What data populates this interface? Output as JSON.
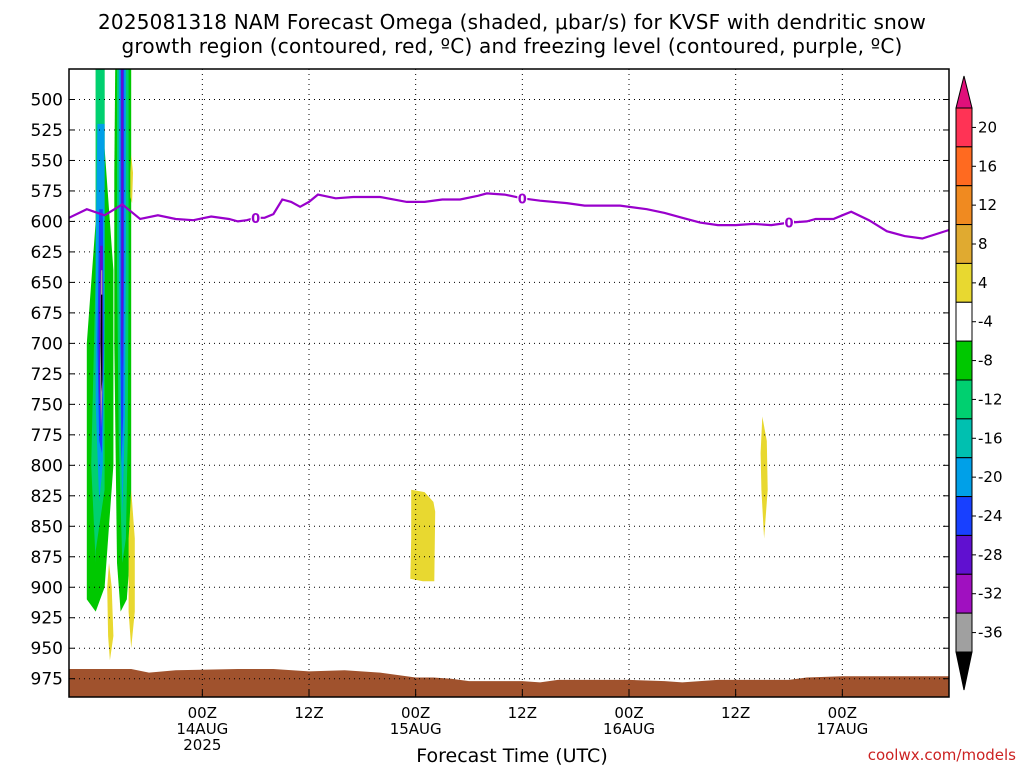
{
  "title": {
    "line1": "2025081318 NAM Forecast Omega (shaded, μbar/s) for KVSF with dendritic snow",
    "line2": "growth region (contoured, red, ºC) and freezing level (contoured, purple, ºC)"
  },
  "credit": "coolwx.com/models",
  "chart_data": {
    "type": "heatmap",
    "xlabel": "Forecast Time (UTC)",
    "ylabel": "",
    "x_range_hours": [
      -15,
      84
    ],
    "y_range_hPa": [
      475,
      990
    ],
    "y_ticks": [
      500,
      525,
      550,
      575,
      600,
      625,
      650,
      675,
      700,
      725,
      750,
      775,
      800,
      825,
      850,
      875,
      900,
      925,
      950,
      975
    ],
    "x_ticks": [
      {
        "hour": 0,
        "lines": [
          "00Z",
          "14AUG",
          "2025"
        ]
      },
      {
        "hour": 12,
        "lines": [
          "12Z"
        ]
      },
      {
        "hour": 24,
        "lines": [
          "00Z",
          "15AUG"
        ]
      },
      {
        "hour": 36,
        "lines": [
          "12Z"
        ]
      },
      {
        "hour": 48,
        "lines": [
          "00Z",
          "16AUG"
        ]
      },
      {
        "hour": 60,
        "lines": [
          "12Z"
        ]
      },
      {
        "hour": 72,
        "lines": [
          "00Z",
          "17AUG"
        ]
      }
    ],
    "grid": true,
    "colorbar": {
      "placement": "right",
      "labels": [
        "20",
        "16",
        "12",
        "8",
        "4",
        "-4",
        "-8",
        "-12",
        "-16",
        "-20",
        "-24",
        "-28",
        "-32",
        "-36"
      ],
      "colors_top_to_bottom": [
        "#ff3355",
        "#ff6a20",
        "#f08a20",
        "#e0aa30",
        "#e8d830",
        "#ffffff",
        "#00c800",
        "#00d070",
        "#00c0b0",
        "#00a0e8",
        "#1840ff",
        "#6010d0",
        "#a010c0",
        "#a0a0a0"
      ],
      "top_arrow_color": "#e0107a",
      "bottom_arrow_color": "#000000"
    },
    "freezing_level": {
      "color": "#9900cc",
      "contour_label": "0",
      "label_hours": [
        6,
        36,
        66
      ],
      "points": [
        [
          -15,
          597
        ],
        [
          -13,
          590
        ],
        [
          -11,
          595
        ],
        [
          -9,
          586
        ],
        [
          -7,
          598
        ],
        [
          -5,
          595
        ],
        [
          -3,
          598
        ],
        [
          -1,
          599
        ],
        [
          1,
          596
        ],
        [
          3,
          598
        ],
        [
          4,
          600
        ],
        [
          5,
          599
        ],
        [
          6,
          597
        ],
        [
          7,
          597
        ],
        [
          8,
          594
        ],
        [
          9,
          582
        ],
        [
          10,
          584
        ],
        [
          11,
          588
        ],
        [
          12,
          584
        ],
        [
          13,
          578
        ],
        [
          15,
          581
        ],
        [
          17,
          580
        ],
        [
          20,
          580
        ],
        [
          23,
          584
        ],
        [
          25,
          584
        ],
        [
          27,
          582
        ],
        [
          29,
          582
        ],
        [
          31,
          579
        ],
        [
          32,
          577
        ],
        [
          34,
          578
        ],
        [
          36,
          581
        ],
        [
          38,
          583
        ],
        [
          41,
          585
        ],
        [
          43,
          587
        ],
        [
          45,
          587
        ],
        [
          47,
          587
        ],
        [
          50,
          590
        ],
        [
          52,
          593
        ],
        [
          54,
          597
        ],
        [
          56,
          601
        ],
        [
          58,
          603
        ],
        [
          60,
          603
        ],
        [
          62,
          602
        ],
        [
          64,
          603
        ],
        [
          66,
          601
        ],
        [
          68,
          600
        ],
        [
          69,
          598
        ],
        [
          71,
          598
        ],
        [
          72,
          595
        ],
        [
          73,
          592
        ],
        [
          75,
          599
        ],
        [
          77,
          608
        ],
        [
          79,
          612
        ],
        [
          81,
          614
        ],
        [
          84,
          607
        ]
      ]
    },
    "omega_shading": [
      {
        "color": "#00c800",
        "outline": [
          [
            -12,
            475
          ],
          [
            -11,
            475
          ],
          [
            -11,
            540
          ],
          [
            -10,
            640
          ],
          [
            -10,
            800
          ],
          [
            -11,
            900
          ],
          [
            -12,
            920
          ],
          [
            -13,
            910
          ],
          [
            -13,
            880
          ],
          [
            -13,
            820
          ],
          [
            -13,
            700
          ],
          [
            -12,
            600
          ]
        ]
      },
      {
        "color": "#00d070",
        "outline": [
          [
            -12,
            475
          ],
          [
            -11,
            475
          ],
          [
            -11,
            560
          ],
          [
            -11,
            700
          ],
          [
            -11,
            820
          ],
          [
            -12,
            870
          ],
          [
            -12,
            880
          ],
          [
            -12.5,
            800
          ],
          [
            -12,
            640
          ],
          [
            -12,
            560
          ]
        ]
      },
      {
        "color": "#00a0e8",
        "outline": [
          [
            -11.8,
            520
          ],
          [
            -11,
            520
          ],
          [
            -11,
            680
          ],
          [
            -11.2,
            800
          ],
          [
            -11.6,
            830
          ],
          [
            -12,
            750
          ],
          [
            -12,
            620
          ]
        ]
      },
      {
        "color": "#1840ff",
        "outline": [
          [
            -11.6,
            590
          ],
          [
            -11.2,
            590
          ],
          [
            -11.1,
            700
          ],
          [
            -11.3,
            790
          ],
          [
            -11.6,
            780
          ],
          [
            -11.8,
            700
          ]
        ]
      },
      {
        "color": "#6010d0",
        "outline": [
          [
            -11.5,
            620
          ],
          [
            -11.2,
            620
          ],
          [
            -11.2,
            720
          ],
          [
            -11.4,
            770
          ],
          [
            -11.6,
            740
          ],
          [
            -11.6,
            680
          ]
        ]
      },
      {
        "color": "#a0a0a0",
        "outline": [
          [
            -11.4,
            640
          ],
          [
            -11.25,
            640
          ],
          [
            -11.25,
            740
          ],
          [
            -11.4,
            770
          ],
          [
            -11.5,
            720
          ]
        ]
      },
      {
        "color": "#000000",
        "outline": [
          [
            -11.4,
            660
          ],
          [
            -11.25,
            660
          ],
          [
            -11.25,
            730
          ],
          [
            -11.35,
            740
          ],
          [
            -11.45,
            700
          ]
        ]
      },
      {
        "color": "#00c800",
        "outline": [
          [
            -9.8,
            475
          ],
          [
            -8,
            475
          ],
          [
            -8,
            560
          ],
          [
            -8,
            700
          ],
          [
            -8,
            860
          ],
          [
            -8.5,
            910
          ],
          [
            -9.2,
            920
          ],
          [
            -9.6,
            880
          ],
          [
            -9.9,
            700
          ],
          [
            -9.9,
            560
          ]
        ]
      },
      {
        "color": "#00d070",
        "outline": [
          [
            -9.6,
            475
          ],
          [
            -8.3,
            475
          ],
          [
            -8.3,
            640
          ],
          [
            -8.4,
            780
          ],
          [
            -8.6,
            860
          ],
          [
            -9,
            880
          ],
          [
            -9.4,
            780
          ],
          [
            -9.6,
            640
          ]
        ]
      },
      {
        "color": "#00a0e8",
        "outline": [
          [
            -9.4,
            475
          ],
          [
            -8.6,
            475
          ],
          [
            -8.6,
            620
          ],
          [
            -8.7,
            760
          ],
          [
            -9,
            840
          ],
          [
            -9.2,
            760
          ],
          [
            -9.4,
            620
          ]
        ]
      },
      {
        "color": "#1840ff",
        "outline": [
          [
            -9.2,
            475
          ],
          [
            -8.8,
            475
          ],
          [
            -8.8,
            640
          ],
          [
            -8.9,
            760
          ],
          [
            -9.1,
            800
          ],
          [
            -9.2,
            700
          ]
        ]
      },
      {
        "color": "#6010d0",
        "outline": [
          [
            -9.15,
            475
          ],
          [
            -8.9,
            475
          ],
          [
            -8.9,
            640
          ],
          [
            -9,
            720
          ],
          [
            -9.1,
            700
          ],
          [
            -9.1,
            600
          ]
        ]
      },
      {
        "color": "#e8d830",
        "outline": [
          [
            -10.5,
            880
          ],
          [
            -10.2,
            900
          ],
          [
            -10,
            940
          ],
          [
            -10.4,
            960
          ],
          [
            -10.6,
            940
          ],
          [
            -10.7,
            900
          ]
        ]
      },
      {
        "color": "#e8d830",
        "outline": [
          [
            -8,
            820
          ],
          [
            -7.6,
            860
          ],
          [
            -7.6,
            920
          ],
          [
            -8,
            950
          ],
          [
            -8.3,
            920
          ],
          [
            -8.3,
            860
          ]
        ]
      },
      {
        "color": "#e8d830",
        "outline": [
          [
            -8,
            545
          ],
          [
            -7.8,
            560
          ],
          [
            -7.9,
            585
          ],
          [
            -8.1,
            580
          ],
          [
            -8.1,
            560
          ]
        ]
      },
      {
        "color": "#e8d830",
        "outline": [
          [
            23.5,
            820
          ],
          [
            25,
            822
          ],
          [
            26,
            830
          ],
          [
            26.2,
            838
          ],
          [
            26.1,
            895
          ],
          [
            24.8,
            895
          ],
          [
            23.4,
            893
          ],
          [
            23.5,
            860
          ]
        ]
      },
      {
        "color": "#e8d830",
        "outline": [
          [
            63,
            760
          ],
          [
            63.5,
            780
          ],
          [
            63.6,
            820
          ],
          [
            63.2,
            860
          ],
          [
            62.9,
            820
          ],
          [
            62.8,
            790
          ]
        ]
      }
    ],
    "terrain": {
      "color": "#a0522d",
      "points": [
        [
          -15,
          967
        ],
        [
          -8,
          967
        ],
        [
          -6,
          970
        ],
        [
          -3,
          968
        ],
        [
          4,
          967
        ],
        [
          8,
          967
        ],
        [
          12,
          969
        ],
        [
          16,
          968
        ],
        [
          20,
          970
        ],
        [
          24,
          974
        ],
        [
          26,
          974
        ],
        [
          28,
          975
        ],
        [
          30,
          977
        ],
        [
          36,
          977
        ],
        [
          38,
          978
        ],
        [
          40,
          976
        ],
        [
          45,
          976
        ],
        [
          48,
          976
        ],
        [
          52,
          977
        ],
        [
          54,
          978
        ],
        [
          58,
          976
        ],
        [
          62,
          976
        ],
        [
          66,
          976
        ],
        [
          68,
          974
        ],
        [
          72,
          973
        ],
        [
          76,
          973
        ],
        [
          80,
          973
        ],
        [
          84,
          973
        ]
      ],
      "bottom_hPa": 990
    }
  }
}
